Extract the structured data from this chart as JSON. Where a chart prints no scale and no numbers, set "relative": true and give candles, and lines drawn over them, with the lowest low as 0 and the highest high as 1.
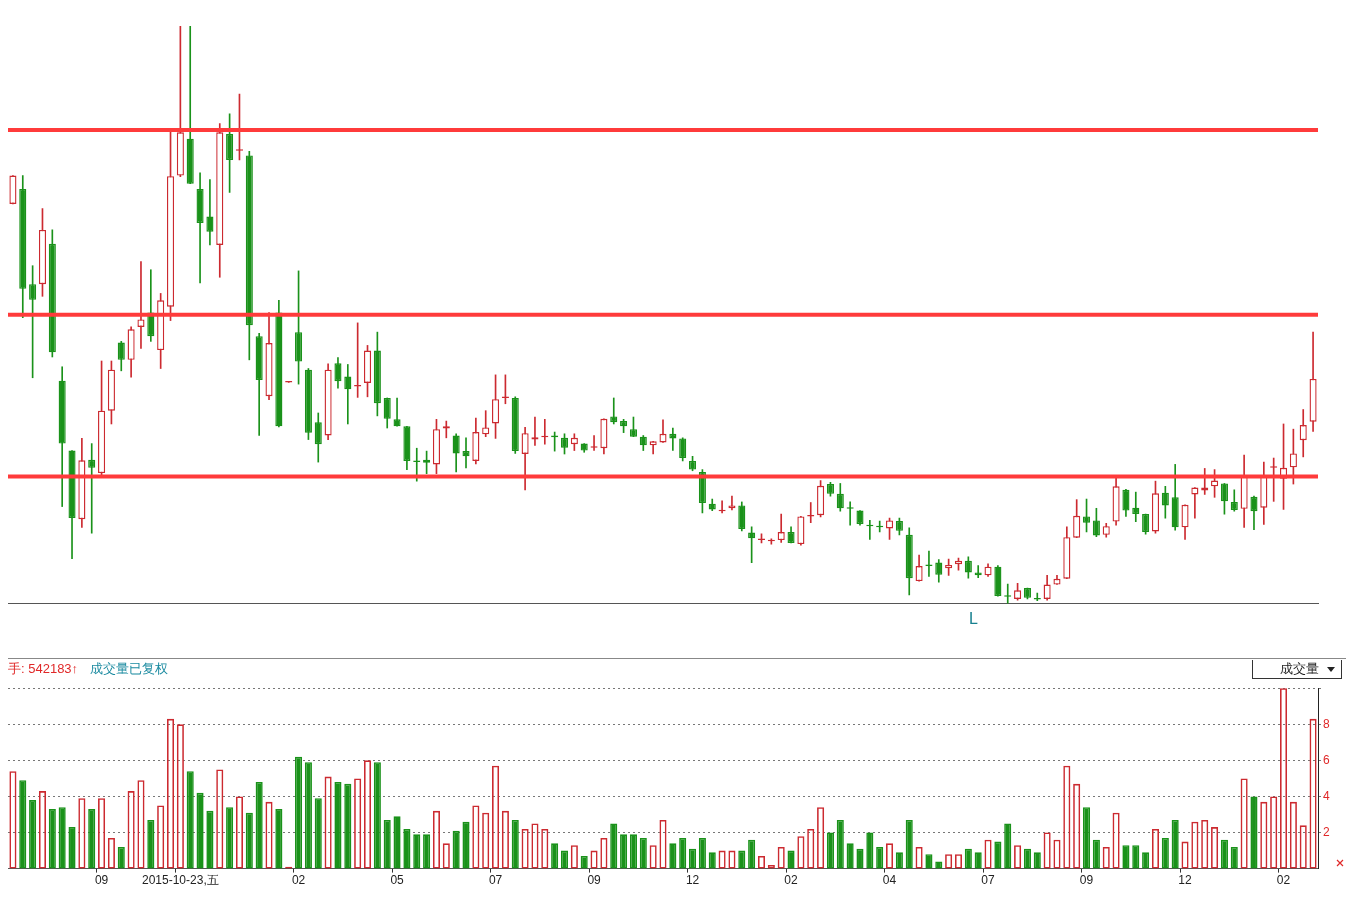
{
  "chart_data": [
    {
      "type": "candlestick",
      "relative": true,
      "categories": [
        null,
        null,
        null,
        null,
        null,
        null,
        null,
        null,
        null,
        null,
        null,
        null,
        null,
        null,
        null,
        null,
        null,
        null,
        null,
        null,
        null,
        null,
        null,
        null,
        null,
        null,
        null,
        null,
        null,
        null,
        null,
        null,
        null,
        null,
        null,
        null,
        null,
        null,
        null,
        null,
        null,
        null,
        null,
        null,
        null,
        null,
        null,
        null,
        null,
        null,
        null,
        null,
        null,
        null,
        null,
        null,
        null,
        null,
        null,
        null,
        null,
        null,
        null,
        null,
        null,
        null,
        null,
        null,
        null,
        null,
        null,
        null,
        null,
        null,
        null,
        null,
        null,
        null,
        null,
        null,
        null,
        null,
        null,
        null,
        null,
        null,
        null,
        null,
        null,
        null,
        null,
        null,
        null,
        null,
        null,
        null,
        null,
        null,
        null,
        null,
        null,
        null,
        null,
        null,
        null,
        null,
        null,
        null,
        null,
        null,
        null,
        null,
        null,
        null,
        null,
        null,
        null,
        null,
        null,
        null,
        null,
        null,
        null,
        null,
        null,
        null,
        null,
        null,
        null,
        null,
        null,
        null,
        null
      ],
      "ohlc": [
        [
          0.692,
          0.741,
          0.692,
          0.741
        ],
        [
          0.718,
          0.741,
          0.495,
          0.545
        ],
        [
          0.553,
          0.585,
          0.391,
          0.526
        ],
        [
          0.553,
          0.684,
          0.532,
          0.647
        ],
        [
          0.623,
          0.647,
          0.427,
          0.435
        ],
        [
          0.386,
          0.41,
          0.168,
          0.277
        ],
        [
          0.265,
          0.265,
          0.078,
          0.148
        ],
        [
          0.146,
          0.286,
          0.132,
          0.248
        ],
        [
          0.249,
          0.277,
          0.122,
          0.235
        ],
        [
          0.226,
          0.42,
          0.219,
          0.334
        ],
        [
          0.334,
          0.42,
          0.311,
          0.405
        ],
        [
          0.452,
          0.454,
          0.403,
          0.422
        ],
        [
          0.422,
          0.479,
          0.392,
          0.475
        ],
        [
          0.479,
          0.592,
          0.442,
          0.492
        ],
        [
          0.504,
          0.578,
          0.454,
          0.463
        ],
        [
          0.439,
          0.537,
          0.407,
          0.525
        ],
        [
          0.514,
          0.82,
          0.49,
          0.74
        ],
        [
          0.741,
          1,
          0.739,
          0.816
        ],
        [
          0.805,
          1,
          0.727,
          0.727
        ],
        [
          0.718,
          0.746,
          0.555,
          0.659
        ],
        [
          0.67,
          0.734,
          0.621,
          0.644
        ],
        [
          0.621,
          0.831,
          0.565,
          0.816
        ],
        [
          0.813,
          0.848,
          0.712,
          0.768
        ],
        [
          0.784,
          0.882,
          0.768,
          0.785
        ],
        [
          0.776,
          0.783,
          0.422,
          0.482
        ],
        [
          0.463,
          0.468,
          0.291,
          0.387
        ],
        [
          0.359,
          0.504,
          0.353,
          0.451
        ],
        [
          0.504,
          0.525,
          0.306,
          0.307
        ],
        [
          0.383,
          0.384,
          0.383,
          0.384
        ],
        [
          0.47,
          0.576,
          0.38,
          0.419
        ],
        [
          0.405,
          0.407,
          0.284,
          0.296
        ],
        [
          0.314,
          0.33,
          0.245,
          0.276
        ],
        [
          0.291,
          0.415,
          0.284,
          0.405
        ],
        [
          0.416,
          0.426,
          0.373,
          0.385
        ],
        [
          0.393,
          0.414,
          0.311,
          0.371
        ],
        [
          0.376,
          0.486,
          0.357,
          0.377
        ],
        [
          0.382,
          0.447,
          0.358,
          0.438
        ],
        [
          0.438,
          0.47,
          0.325,
          0.347
        ],
        [
          0.356,
          0.356,
          0.304,
          0.32
        ],
        [
          0.319,
          0.356,
          0.307,
          0.307
        ],
        [
          0.307,
          0.307,
          0.232,
          0.247
        ],
        [
          0.246,
          0.269,
          0.212,
          0.245
        ],
        [
          0.249,
          0.264,
          0.225,
          0.244
        ],
        [
          0.241,
          0.319,
          0.225,
          0.302
        ],
        [
          0.303,
          0.316,
          0.287,
          0.307
        ],
        [
          0.291,
          0.294,
          0.228,
          0.26
        ],
        [
          0.264,
          0.287,
          0.235,
          0.255
        ],
        [
          0.247,
          0.321,
          0.242,
          0.297
        ],
        [
          0.293,
          0.334,
          0.289,
          0.305
        ],
        [
          0.312,
          0.396,
          0.286,
          0.354
        ],
        [
          0.356,
          0.396,
          0.346,
          0.357
        ],
        [
          0.356,
          0.358,
          0.26,
          0.264
        ],
        [
          0.259,
          0.305,
          0.197,
          0.295
        ],
        [
          0.284,
          0.323,
          0.274,
          0.288
        ],
        [
          0.288,
          0.319,
          0.276,
          0.29
        ],
        [
          0.291,
          0.297,
          0.264,
          0.288
        ],
        [
          0.287,
          0.294,
          0.259,
          0.27
        ],
        [
          0.276,
          0.294,
          0.265,
          0.287
        ],
        [
          0.277,
          0.277,
          0.262,
          0.265
        ],
        [
          0.27,
          0.291,
          0.265,
          0.271
        ],
        [
          0.269,
          0.32,
          0.259,
          0.32
        ],
        [
          0.324,
          0.356,
          0.311,
          0.314
        ],
        [
          0.316,
          0.319,
          0.296,
          0.307
        ],
        [
          0.302,
          0.323,
          0.289,
          0.289
        ],
        [
          0.289,
          0.291,
          0.265,
          0.274
        ],
        [
          0.274,
          0.281,
          0.259,
          0.281
        ],
        [
          0.279,
          0.318,
          0.279,
          0.294
        ],
        [
          0.294,
          0.304,
          0.265,
          0.286
        ],
        [
          0.286,
          0.287,
          0.247,
          0.252
        ],
        [
          0.247,
          0.255,
          0.23,
          0.232
        ],
        [
          0.228,
          0.232,
          0.157,
          0.174
        ],
        [
          0.173,
          0.181,
          0.161,
          0.163
        ],
        [
          0.16,
          0.178,
          0.157,
          0.161
        ],
        [
          0.165,
          0.186,
          0.162,
          0.17
        ],
        [
          0.17,
          0.176,
          0.126,
          0.129
        ],
        [
          0.123,
          0.133,
          0.071,
          0.113
        ],
        [
          0.11,
          0.121,
          0.105,
          0.111
        ],
        [
          0.108,
          0.112,
          0.103,
          0.109
        ],
        [
          0.11,
          0.155,
          0.106,
          0.124
        ],
        [
          0.124,
          0.133,
          0.105,
          0.105
        ],
        [
          0.103,
          0.151,
          0.101,
          0.151
        ],
        [
          0.151,
          0.175,
          0.14,
          0.152
        ],
        [
          0.153,
          0.213,
          0.15,
          0.204
        ],
        [
          0.207,
          0.21,
          0.186,
          0.19
        ],
        [
          0.19,
          0.208,
          0.16,
          0.165
        ],
        [
          0.165,
          0.176,
          0.136,
          0.164
        ],
        [
          0.161,
          0.161,
          0.136,
          0.138
        ],
        [
          0.135,
          0.144,
          0.111,
          0.134
        ],
        [
          0.133,
          0.143,
          0.124,
          0.132
        ],
        [
          0.13,
          0.148,
          0.111,
          0.144
        ],
        [
          0.143,
          0.148,
          0.119,
          0.126
        ],
        [
          0.119,
          0.131,
          0.015,
          0.044
        ],
        [
          0.039,
          0.084,
          0.039,
          0.065
        ],
        [
          0.066,
          0.091,
          0.047,
          0.065
        ],
        [
          0.071,
          0.076,
          0.037,
          0.05
        ],
        [
          0.061,
          0.077,
          0.049,
          0.067
        ],
        [
          0.068,
          0.079,
          0.058,
          0.074
        ],
        [
          0.074,
          0.081,
          0.044,
          0.054
        ],
        [
          0.054,
          0.066,
          0.045,
          0.049
        ],
        [
          0.049,
          0.069,
          0.047,
          0.064
        ],
        [
          0.064,
          0.066,
          0.013,
          0.013
        ],
        [
          0.013,
          0.034,
          0,
          0.012
        ],
        [
          0.008,
          0.035,
          0.006,
          0.023
        ],
        [
          0.027,
          0.027,
          0.008,
          0.01
        ],
        [
          0.008,
          0.018,
          0.005,
          0.007
        ],
        [
          0.008,
          0.049,
          0.006,
          0.033
        ],
        [
          0.033,
          0.049,
          0.033,
          0.043
        ],
        [
          0.043,
          0.133,
          0.043,
          0.115
        ],
        [
          0.114,
          0.18,
          0.114,
          0.152
        ],
        [
          0.151,
          0.181,
          0.124,
          0.14
        ],
        [
          0.144,
          0.165,
          0.116,
          0.118
        ],
        [
          0.119,
          0.139,
          0.115,
          0.134
        ],
        [
          0.142,
          0.217,
          0.136,
          0.203
        ],
        [
          0.197,
          0.198,
          0.151,
          0.161
        ],
        [
          0.166,
          0.193,
          0.142,
          0.155
        ],
        [
          0.155,
          0.155,
          0.12,
          0.124
        ],
        [
          0.125,
          0.212,
          0.122,
          0.191
        ],
        [
          0.192,
          0.203,
          0.148,
          0.17
        ],
        [
          0.184,
          0.241,
          0.127,
          0.132
        ],
        [
          0.132,
          0.171,
          0.111,
          0.171
        ],
        [
          0.189,
          0.201,
          0.148,
          0.201
        ],
        [
          0.196,
          0.234,
          0.189,
          0.201
        ],
        [
          0.203,
          0.232,
          0.184,
          0.213
        ],
        [
          0.208,
          0.208,
          0.155,
          0.177
        ],
        [
          0.176,
          0.197,
          0.16,
          0.162
        ],
        [
          0.164,
          0.257,
          0.132,
          0.22
        ],
        [
          0.185,
          0.186,
          0.128,
          0.16
        ],
        [
          0.166,
          0.245,
          0.137,
          0.22
        ],
        [
          0.235,
          0.252,
          0.177,
          0.236
        ],
        [
          0.216,
          0.311,
          0.163,
          0.235
        ],
        [
          0.236,
          0.302,
          0.207,
          0.26
        ],
        [
          0.283,
          0.336,
          0.254,
          0.309
        ],
        [
          0.315,
          0.47,
          0.298,
          0.389
        ]
      ],
      "colors": [
        "#cc2a30",
        "#1a921a",
        "#1a921a",
        "#cc2a30",
        "#1a921a",
        "#1a921a",
        "#1a921a",
        "#cc2a30",
        "#1a921a",
        "#cc2a30",
        "#cc2a30",
        "#1a921a",
        "#cc2a30",
        "#cc2a30",
        "#1a921a",
        "#cc2a30",
        "#cc2a30",
        "#cc2a30",
        "#1a921a",
        "#1a921a",
        "#1a921a",
        "#cc2a30",
        "#1a921a",
        "#cc2a30",
        "#1a921a",
        "#1a921a",
        "#cc2a30",
        "#1a921a",
        "#cc2a30",
        "#1a921a",
        "#1a921a",
        "#1a921a",
        "#cc2a30",
        "#1a921a",
        "#1a921a",
        "#cc2a30",
        "#cc2a30",
        "#1a921a",
        "#1a921a",
        "#1a921a",
        "#1a921a",
        "#1a921a",
        "#1a921a",
        "#cc2a30",
        "#cc2a30",
        "#1a921a",
        "#1a921a",
        "#cc2a30",
        "#cc2a30",
        "#cc2a30",
        "#cc2a30",
        "#1a921a",
        "#cc2a30",
        "#cc2a30",
        "#cc2a30",
        "#1a921a",
        "#1a921a",
        "#cc2a30",
        "#1a921a",
        "#cc2a30",
        "#cc2a30",
        "#1a921a",
        "#1a921a",
        "#1a921a",
        "#1a921a",
        "#cc2a30",
        "#cc2a30",
        "#1a921a",
        "#1a921a",
        "#1a921a",
        "#1a921a",
        "#1a921a",
        "#cc2a30",
        "#cc2a30",
        "#1a921a",
        "#1a921a",
        "#cc2a30",
        "#cc2a30",
        "#cc2a30",
        "#1a921a",
        "#cc2a30",
        "#cc2a30",
        "#cc2a30",
        "#1a921a",
        "#1a921a",
        "#1a921a",
        "#1a921a",
        "#1a921a",
        "#1a921a",
        "#cc2a30",
        "#1a921a",
        "#1a921a",
        "#cc2a30",
        "#1a921a",
        "#1a921a",
        "#cc2a30",
        "#cc2a30",
        "#1a921a",
        "#1a921a",
        "#cc2a30",
        "#1a921a",
        "#1a921a",
        "#cc2a30",
        "#1a921a",
        "#1a921a",
        "#cc2a30",
        "#cc2a30",
        "#cc2a30",
        "#cc2a30",
        "#1a921a",
        "#1a921a",
        "#cc2a30",
        "#cc2a30",
        "#1a921a",
        "#1a921a",
        "#1a921a",
        "#cc2a30",
        "#1a921a",
        "#1a921a",
        "#cc2a30",
        "#cc2a30",
        "#cc2a30",
        "#cc2a30",
        "#1a921a",
        "#1a921a",
        "#cc2a30",
        "#1a921a",
        "#cc2a30",
        "#cc2a30",
        "#cc2a30",
        "#cc2a30",
        "#cc2a30",
        "#cc2a30"
      ],
      "ref_lines": [
        {
          "axis": "y",
          "value": 0.82,
          "color": "#ff3b3b"
        },
        {
          "axis": "y",
          "value": 0.5,
          "color": "#ff3b3b"
        },
        {
          "axis": "y",
          "value": 0.22,
          "color": "#ff3b3b"
        }
      ],
      "annotations": [
        "L"
      ]
    },
    {
      "type": "bar",
      "categories": [
        null,
        null,
        null,
        null,
        null,
        null,
        null,
        null,
        null,
        "09",
        null,
        null,
        null,
        null,
        null,
        null,
        null,
        "2015-10-23,五",
        null,
        null,
        null,
        null,
        null,
        null,
        null,
        null,
        null,
        null,
        null,
        "02",
        null,
        null,
        null,
        null,
        null,
        null,
        null,
        null,
        null,
        "05",
        null,
        null,
        null,
        null,
        null,
        null,
        null,
        null,
        null,
        "07",
        null,
        null,
        null,
        null,
        null,
        null,
        null,
        null,
        null,
        "09",
        null,
        null,
        null,
        null,
        null,
        null,
        null,
        null,
        null,
        "12",
        null,
        null,
        null,
        null,
        null,
        null,
        null,
        null,
        null,
        "02",
        null,
        null,
        null,
        null,
        null,
        null,
        null,
        null,
        null,
        "04",
        null,
        null,
        null,
        null,
        null,
        null,
        null,
        null,
        null,
        "07",
        null,
        null,
        null,
        null,
        null,
        null,
        null,
        null,
        null,
        "09",
        null,
        null,
        null,
        null,
        null,
        null,
        null,
        null,
        null,
        "12",
        null,
        null,
        null,
        null,
        null,
        null,
        null,
        null,
        null,
        "02",
        null,
        null,
        null
      ],
      "values": [
        5.4,
        4.9,
        3.8,
        4.3,
        3.3,
        3.4,
        2.3,
        3.9,
        3.3,
        3.9,
        1.7,
        1.2,
        4.3,
        4.9,
        2.7,
        3.5,
        8.3,
        8.0,
        5.4,
        4.2,
        3.2,
        5.5,
        3.4,
        4.0,
        3.1,
        4.8,
        3.7,
        3.3,
        0.1,
        6.2,
        5.9,
        3.9,
        5.1,
        4.8,
        4.7,
        5.0,
        6.0,
        5.9,
        2.7,
        2.9,
        2.2,
        1.9,
        1.9,
        3.2,
        1.4,
        2.1,
        2.6,
        3.5,
        3.1,
        5.7,
        3.2,
        2.7,
        2.2,
        2.5,
        2.2,
        1.4,
        1.0,
        1.3,
        0.7,
        1.0,
        1.7,
        2.5,
        1.9,
        1.9,
        1.7,
        1.3,
        2.7,
        1.4,
        1.7,
        1.1,
        1.7,
        0.9,
        1.0,
        1.0,
        1.0,
        1.6,
        0.7,
        0.2,
        1.2,
        1.0,
        1.8,
        2.2,
        3.4,
        2.0,
        2.7,
        1.4,
        1.1,
        2.0,
        1.2,
        1.4,
        0.9,
        2.7,
        1.2,
        0.8,
        0.4,
        0.8,
        0.8,
        1.1,
        0.9,
        1.6,
        1.5,
        2.5,
        1.3,
        1.1,
        0.9,
        2.0,
        1.6,
        5.7,
        4.7,
        3.4,
        1.6,
        1.2,
        3.1,
        1.3,
        1.3,
        0.9,
        2.2,
        1.7,
        2.7,
        1.5,
        2.6,
        2.7,
        2.3,
        1.6,
        1.2,
        5.0,
        4.0,
        3.7,
        4.0,
        10,
        3.7,
        2.4,
        8.3
      ],
      "colors": [
        "#cc2a30",
        "#1a921a",
        "#1a921a",
        "#cc2a30",
        "#1a921a",
        "#1a921a",
        "#1a921a",
        "#cc2a30",
        "#1a921a",
        "#cc2a30",
        "#cc2a30",
        "#1a921a",
        "#cc2a30",
        "#cc2a30",
        "#1a921a",
        "#cc2a30",
        "#cc2a30",
        "#cc2a30",
        "#1a921a",
        "#1a921a",
        "#1a921a",
        "#cc2a30",
        "#1a921a",
        "#cc2a30",
        "#1a921a",
        "#1a921a",
        "#cc2a30",
        "#1a921a",
        "#cc2a30",
        "#1a921a",
        "#1a921a",
        "#1a921a",
        "#cc2a30",
        "#1a921a",
        "#1a921a",
        "#cc2a30",
        "#cc2a30",
        "#1a921a",
        "#1a921a",
        "#1a921a",
        "#1a921a",
        "#1a921a",
        "#1a921a",
        "#cc2a30",
        "#cc2a30",
        "#1a921a",
        "#1a921a",
        "#cc2a30",
        "#cc2a30",
        "#cc2a30",
        "#cc2a30",
        "#1a921a",
        "#cc2a30",
        "#cc2a30",
        "#cc2a30",
        "#1a921a",
        "#1a921a",
        "#cc2a30",
        "#1a921a",
        "#cc2a30",
        "#cc2a30",
        "#1a921a",
        "#1a921a",
        "#1a921a",
        "#1a921a",
        "#cc2a30",
        "#cc2a30",
        "#1a921a",
        "#1a921a",
        "#1a921a",
        "#1a921a",
        "#1a921a",
        "#cc2a30",
        "#cc2a30",
        "#1a921a",
        "#1a921a",
        "#cc2a30",
        "#cc2a30",
        "#cc2a30",
        "#1a921a",
        "#cc2a30",
        "#cc2a30",
        "#cc2a30",
        "#1a921a",
        "#1a921a",
        "#1a921a",
        "#1a921a",
        "#1a921a",
        "#1a921a",
        "#cc2a30",
        "#1a921a",
        "#1a921a",
        "#cc2a30",
        "#1a921a",
        "#1a921a",
        "#cc2a30",
        "#cc2a30",
        "#1a921a",
        "#1a921a",
        "#cc2a30",
        "#1a921a",
        "#1a921a",
        "#cc2a30",
        "#1a921a",
        "#1a921a",
        "#cc2a30",
        "#cc2a30",
        "#cc2a30",
        "#cc2a30",
        "#1a921a",
        "#1a921a",
        "#cc2a30",
        "#cc2a30",
        "#1a921a",
        "#1a921a",
        "#1a921a",
        "#cc2a30",
        "#1a921a",
        "#1a921a",
        "#cc2a30",
        "#cc2a30",
        "#cc2a30",
        "#cc2a30",
        "#1a921a",
        "#1a921a",
        "#cc2a30",
        "#1a921a",
        "#cc2a30",
        "#cc2a30",
        "#cc2a30",
        "#cc2a30",
        "#cc2a30",
        "#cc2a30"
      ],
      "ylim": [
        0,
        10
      ],
      "yticks": [
        2,
        4,
        6,
        8,
        {
          "value": 10,
          "label": null
        }
      ],
      "grid": "y",
      "annotations": [
        "手: 542183↑",
        "成交量已复权",
        "成交量"
      ]
    }
  ]
}
